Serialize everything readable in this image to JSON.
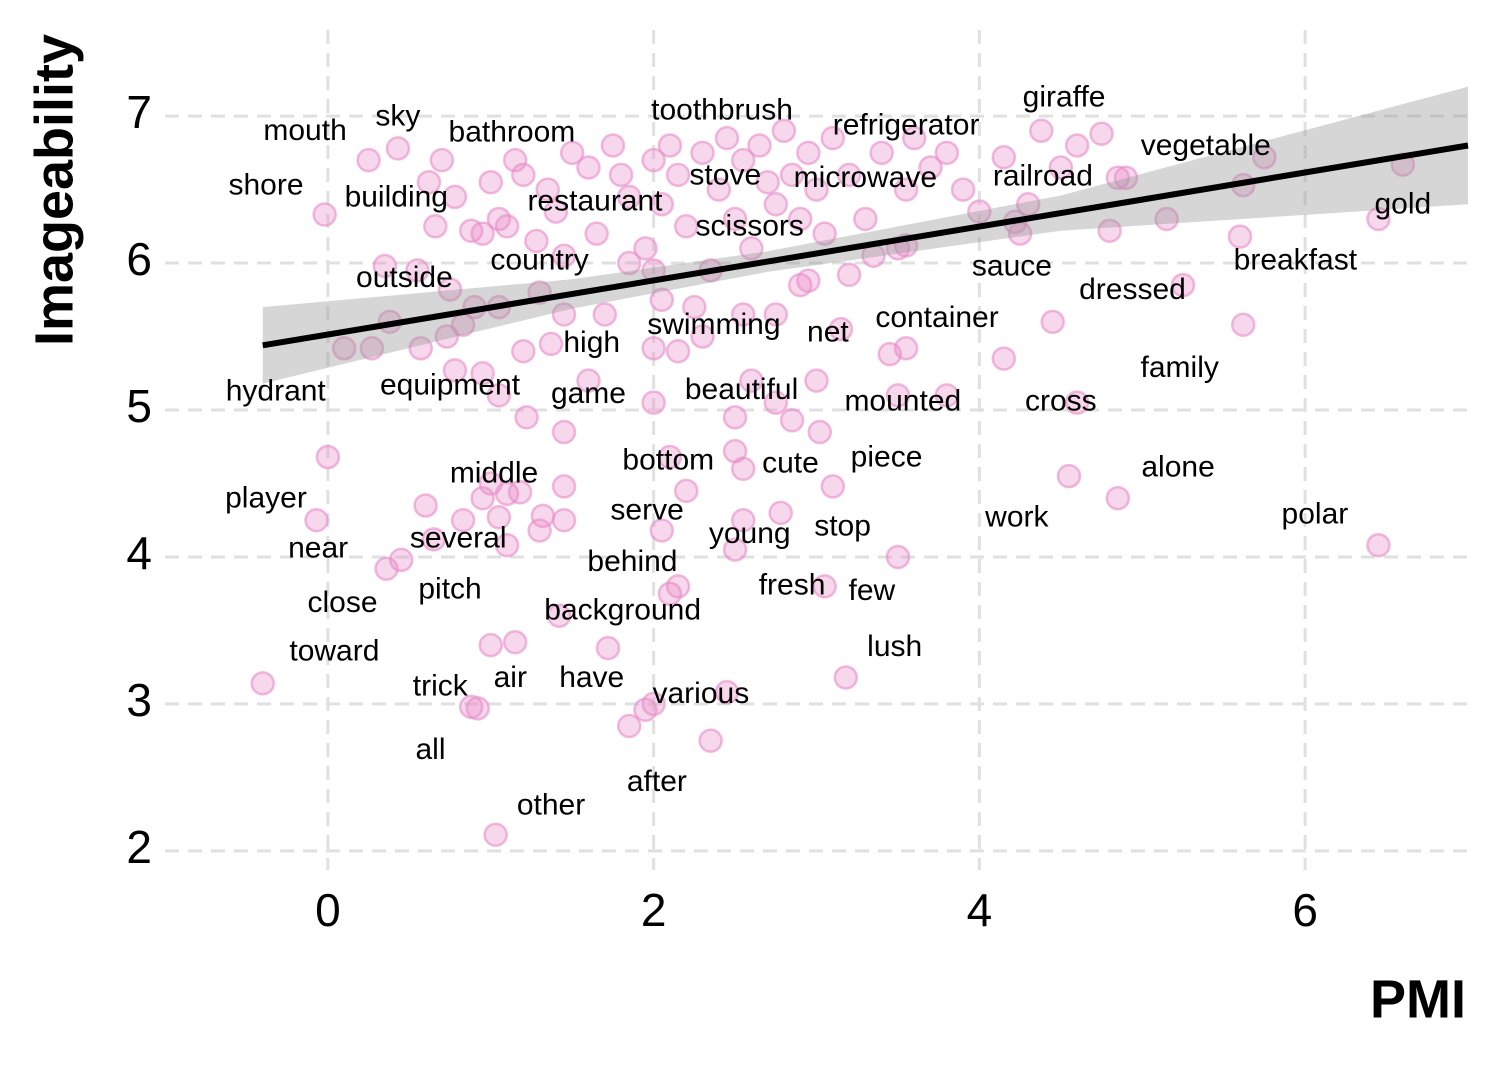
{
  "chart_data": {
    "type": "scatter",
    "xlabel": "PMI",
    "ylabel": "Imageability",
    "xlim": [
      -1,
      7
    ],
    "ylim": [
      1.87,
      7.3
    ],
    "xticks": [
      0,
      2,
      4,
      6
    ],
    "yticks": [
      2,
      3,
      4,
      5,
      6,
      7
    ],
    "grid": true,
    "color": "#e88cc8",
    "x": [
      -0.4,
      0,
      -0.07,
      0.36,
      0.45,
      0.6,
      0.65,
      0.83,
      0.88,
      0.92,
      1.0,
      1.15,
      1.03,
      1.05,
      1.1,
      1.18,
      1.32,
      1.3,
      1.45,
      1.45,
      1.42,
      1.72,
      1.85,
      1.95,
      2.0,
      2.1,
      2.15,
      2.05,
      2.2,
      2.1,
      2.35,
      2.45,
      2.5,
      2.55,
      2.5,
      2.55,
      2.78,
      3.05,
      3.1,
      3.18,
      3.5,
      4.55,
      4.85,
      6.45,
      1.0,
      1.1,
      0.95,
      0.1,
      0.27,
      0.38,
      0.57,
      0.73,
      0.83,
      0.78,
      0.9,
      1.05,
      1.2,
      1.3,
      1.37,
      1.45,
      1.6,
      1.7,
      2.0,
      2.05,
      2.15,
      2.25,
      2.3,
      2.55,
      2.75,
      3.0,
      3.15,
      3.45,
      3.55,
      3.5,
      3.8,
      4.15,
      4.45,
      4.6,
      5.25,
      5.62,
      2.5,
      2.85,
      3.02,
      2.0,
      1.22,
      1.45,
      1.05,
      0.95,
      2.9,
      3.2,
      2.95,
      2.35,
      1.85,
      2.0,
      0.35,
      0.75,
      2.6,
      2.75,
      -0.02,
      0.25,
      0.43,
      0.62,
      0.66,
      0.7,
      0.78,
      0.88,
      0.95,
      1.0,
      1.05,
      1.1,
      1.15,
      1.2,
      1.28,
      1.35,
      1.4,
      1.5,
      1.6,
      1.65,
      1.75,
      1.8,
      1.85,
      1.95,
      2.0,
      2.05,
      2.1,
      2.15,
      2.2,
      2.3,
      2.4,
      2.45,
      2.5,
      2.55,
      2.6,
      2.65,
      2.7,
      2.75,
      2.8,
      2.85,
      2.9,
      2.95,
      3.0,
      3.05,
      3.1,
      3.2,
      3.3,
      3.4,
      3.5,
      3.55,
      3.6,
      3.7,
      3.8,
      3.9,
      4.0,
      4.15,
      4.25,
      4.3,
      4.38,
      4.5,
      4.6,
      4.75,
      4.85,
      4.8,
      5.15,
      5.62,
      5.6,
      5.75,
      6.45,
      6.6,
      0.55,
      1.45,
      3.35,
      3.55,
      4.22,
      4.9
    ],
    "values": [
      3.14,
      4.68,
      4.25,
      3.92,
      3.98,
      4.35,
      4.12,
      4.25,
      2.98,
      2.97,
      3.4,
      3.42,
      2.11,
      4.27,
      4.08,
      4.44,
      4.28,
      4.18,
      4.25,
      4.48,
      3.6,
      3.38,
      2.85,
      2.96,
      3.0,
      3.75,
      3.8,
      4.18,
      4.45,
      4.68,
      2.75,
      3.08,
      4.05,
      4.25,
      4.72,
      4.6,
      4.3,
      3.8,
      4.48,
      3.18,
      4.0,
      4.55,
      4.4,
      4.08,
      4.5,
      4.43,
      4.4,
      5.42,
      5.42,
      5.6,
      5.42,
      5.5,
      5.58,
      5.27,
      5.7,
      5.7,
      5.4,
      5.8,
      5.45,
      5.65,
      5.2,
      5.65,
      5.42,
      5.75,
      5.4,
      5.7,
      5.5,
      5.65,
      5.65,
      5.2,
      5.55,
      5.38,
      5.42,
      5.1,
      5.1,
      5.35,
      5.6,
      5.05,
      5.85,
      5.58,
      4.95,
      4.93,
      4.85,
      5.05,
      4.95,
      4.85,
      5.1,
      5.25,
      5.85,
      5.92,
      5.88,
      5.95,
      6.0,
      5.95,
      5.98,
      5.82,
      5.2,
      5.05,
      6.33,
      6.7,
      6.78,
      6.55,
      6.25,
      6.7,
      6.45,
      6.22,
      6.2,
      6.55,
      6.3,
      6.25,
      6.7,
      6.6,
      6.15,
      6.5,
      6.35,
      6.75,
      6.65,
      6.2,
      6.8,
      6.6,
      6.45,
      6.1,
      6.7,
      6.4,
      6.8,
      6.6,
      6.25,
      6.75,
      6.5,
      6.85,
      6.3,
      6.7,
      6.1,
      6.8,
      6.55,
      6.4,
      6.9,
      6.6,
      6.3,
      6.75,
      6.5,
      6.2,
      6.85,
      6.6,
      6.3,
      6.75,
      6.1,
      6.5,
      6.85,
      6.65,
      6.75,
      6.5,
      6.35,
      6.72,
      6.2,
      6.4,
      6.9,
      6.65,
      6.8,
      6.88,
      6.58,
      6.22,
      6.3,
      6.53,
      6.18,
      6.72,
      6.3,
      6.67,
      5.95,
      6.05,
      6.05,
      6.12,
      6.28,
      6.58
    ],
    "fit": {
      "x": [
        -0.4,
        1.5,
        2.7,
        4.5,
        7
      ],
      "y": [
        5.44,
        5.79,
        6.01,
        6.34,
        6.8
      ],
      "lower": [
        5.18,
        5.69,
        5.94,
        6.22,
        6.4
      ],
      "upper": [
        5.7,
        5.89,
        6.08,
        6.46,
        7.2
      ]
    },
    "labels": [
      {
        "text": "mouth",
        "x": -0.14,
        "y": 6.89
      },
      {
        "text": "sky",
        "x": 0.43,
        "y": 6.99
      },
      {
        "text": "bathroom",
        "x": 1.13,
        "y": 6.88
      },
      {
        "text": "toothbrush",
        "x": 2.42,
        "y": 7.03
      },
      {
        "text": "refrigerator",
        "x": 3.55,
        "y": 6.93
      },
      {
        "text": "giraffe",
        "x": 4.52,
        "y": 7.12
      },
      {
        "text": "vegetable",
        "x": 5.39,
        "y": 6.79
      },
      {
        "text": "shore",
        "x": -0.38,
        "y": 6.52
      },
      {
        "text": "building",
        "x": 0.42,
        "y": 6.44
      },
      {
        "text": "restaurant",
        "x": 1.64,
        "y": 6.41
      },
      {
        "text": "stove",
        "x": 2.44,
        "y": 6.59
      },
      {
        "text": "microwave",
        "x": 3.3,
        "y": 6.57
      },
      {
        "text": "railroad",
        "x": 4.39,
        "y": 6.58
      },
      {
        "text": "gold",
        "x": 6.6,
        "y": 6.39
      },
      {
        "text": "scissors",
        "x": 2.59,
        "y": 6.24
      },
      {
        "text": "country",
        "x": 1.3,
        "y": 6.01
      },
      {
        "text": "outside",
        "x": 0.47,
        "y": 5.89
      },
      {
        "text": "sauce",
        "x": 4.2,
        "y": 5.97
      },
      {
        "text": "breakfast",
        "x": 5.94,
        "y": 6.01
      },
      {
        "text": "dressed",
        "x": 4.94,
        "y": 5.81
      },
      {
        "text": "container",
        "x": 3.74,
        "y": 5.62
      },
      {
        "text": "swimming",
        "x": 2.37,
        "y": 5.57
      },
      {
        "text": "net",
        "x": 3.07,
        "y": 5.52
      },
      {
        "text": "high",
        "x": 1.62,
        "y": 5.45
      },
      {
        "text": "family",
        "x": 5.23,
        "y": 5.28
      },
      {
        "text": "hydrant",
        "x": -0.32,
        "y": 5.12
      },
      {
        "text": "equipment",
        "x": 0.75,
        "y": 5.16
      },
      {
        "text": "game",
        "x": 1.6,
        "y": 5.1
      },
      {
        "text": "beautiful",
        "x": 2.54,
        "y": 5.13
      },
      {
        "text": "mounted",
        "x": 3.53,
        "y": 5.05
      },
      {
        "text": "cross",
        "x": 4.5,
        "y": 5.05
      },
      {
        "text": "bottom",
        "x": 2.09,
        "y": 4.65
      },
      {
        "text": "cute",
        "x": 2.84,
        "y": 4.63
      },
      {
        "text": "piece",
        "x": 3.43,
        "y": 4.67
      },
      {
        "text": "middle",
        "x": 1.02,
        "y": 4.56
      },
      {
        "text": "alone",
        "x": 5.22,
        "y": 4.6
      },
      {
        "text": "player",
        "x": -0.38,
        "y": 4.39
      },
      {
        "text": "serve",
        "x": 1.96,
        "y": 4.31
      },
      {
        "text": "work",
        "x": 4.23,
        "y": 4.26
      },
      {
        "text": "polar",
        "x": 6.06,
        "y": 4.28
      },
      {
        "text": "several",
        "x": 0.8,
        "y": 4.12
      },
      {
        "text": "young",
        "x": 2.59,
        "y": 4.15
      },
      {
        "text": "stop",
        "x": 3.16,
        "y": 4.2
      },
      {
        "text": "near",
        "x": -0.06,
        "y": 4.05
      },
      {
        "text": "behind",
        "x": 1.87,
        "y": 3.96
      },
      {
        "text": "fresh",
        "x": 2.85,
        "y": 3.8
      },
      {
        "text": "few",
        "x": 3.34,
        "y": 3.76
      },
      {
        "text": "pitch",
        "x": 0.75,
        "y": 3.77
      },
      {
        "text": "close",
        "x": 0.09,
        "y": 3.68
      },
      {
        "text": "background",
        "x": 1.81,
        "y": 3.63
      },
      {
        "text": "lush",
        "x": 3.48,
        "y": 3.38
      },
      {
        "text": "toward",
        "x": 0.04,
        "y": 3.35
      },
      {
        "text": "trick",
        "x": 0.69,
        "y": 3.11
      },
      {
        "text": "air",
        "x": 1.12,
        "y": 3.17
      },
      {
        "text": "have",
        "x": 1.62,
        "y": 3.17
      },
      {
        "text": "various",
        "x": 2.29,
        "y": 3.06
      },
      {
        "text": "all",
        "x": 0.63,
        "y": 2.68
      },
      {
        "text": "after",
        "x": 2.02,
        "y": 2.46
      },
      {
        "text": "other",
        "x": 1.37,
        "y": 2.3
      }
    ]
  }
}
